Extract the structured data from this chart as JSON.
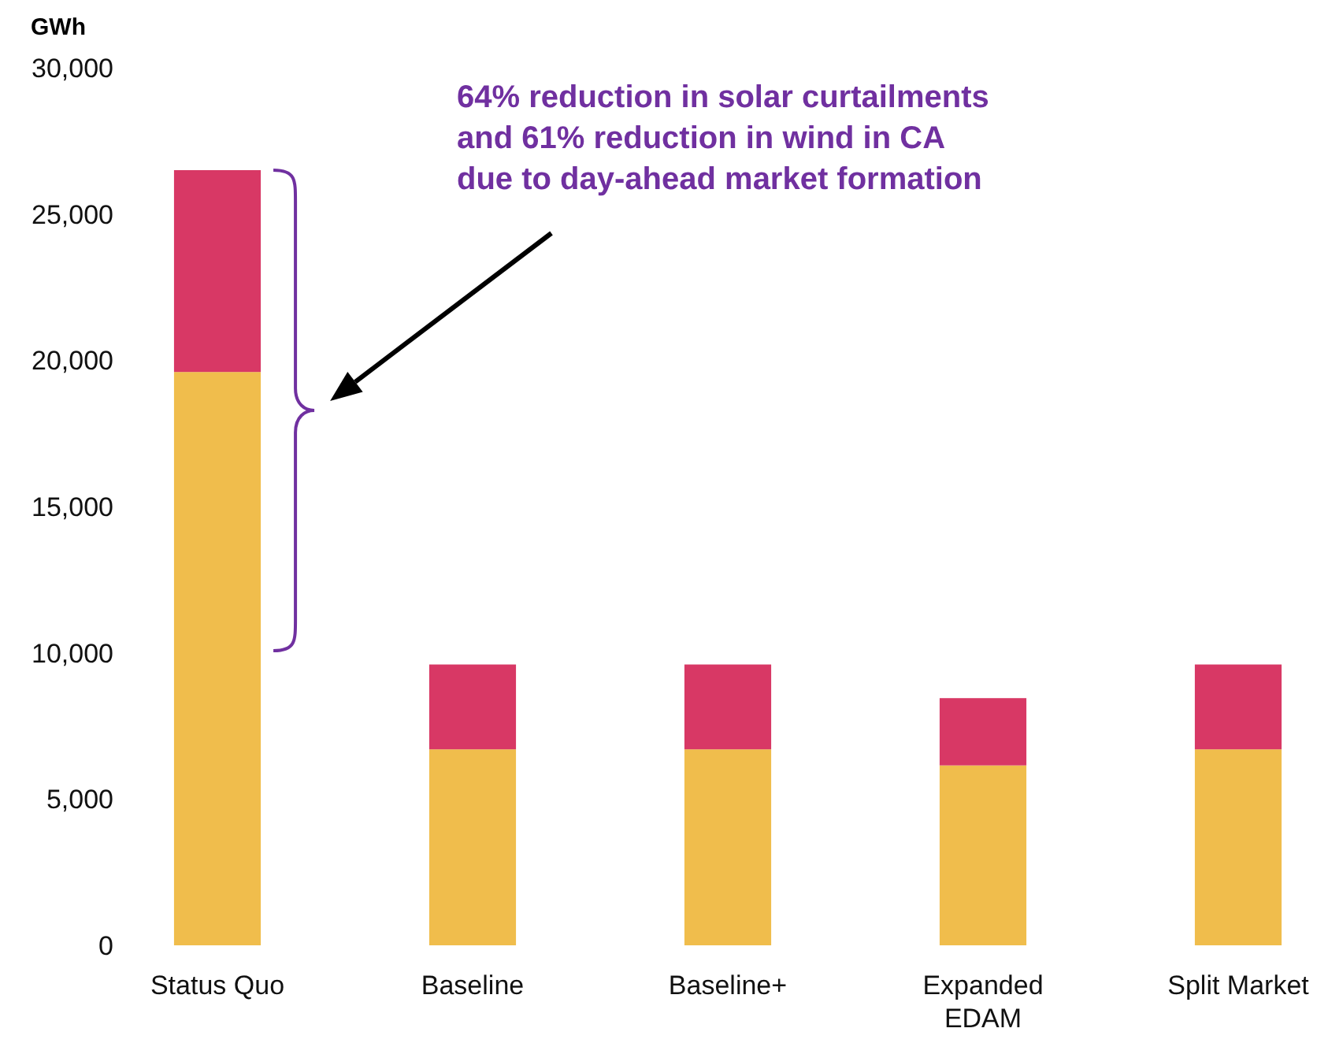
{
  "chart_data": {
    "type": "bar",
    "stacked": true,
    "ylabel": "GWh",
    "categories": [
      "Status Quo",
      "Baseline",
      "Baseline+",
      "Expanded EDAM",
      "Split Market"
    ],
    "series": [
      {
        "color": "#f0bd4c",
        "values": [
          19600,
          6700,
          6700,
          6150,
          6700
        ]
      },
      {
        "color": "#d83865",
        "values": [
          6900,
          2900,
          2900,
          2300,
          2900
        ]
      }
    ],
    "ylim": [
      0,
      30000
    ],
    "yticks": [
      0,
      {
        "value": 5000,
        "label": "5,000"
      },
      {
        "value": 10000,
        "label": "10,000"
      },
      {
        "value": 15000,
        "label": "15,000"
      },
      {
        "value": 20000,
        "label": "20,000"
      },
      {
        "value": 25000,
        "label": "25,000"
      },
      {
        "value": 30000,
        "label": "30,000"
      }
    ],
    "grid": false,
    "annotations": [
      "64% reduction in solar curtailments\nand 61% reduction in wind in CA\ndue to day-ahead market formation"
    ]
  }
}
